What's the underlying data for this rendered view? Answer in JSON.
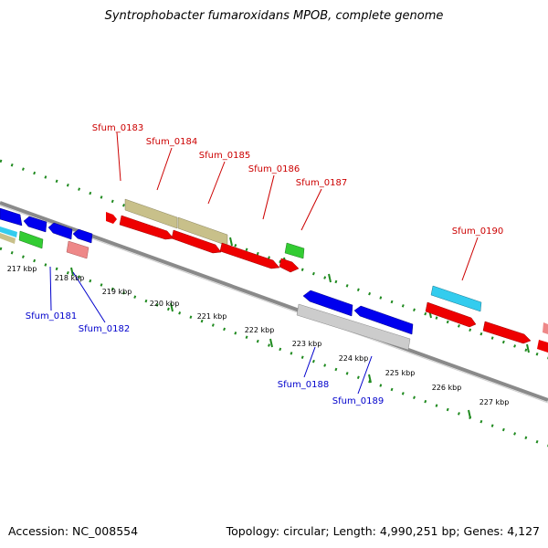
{
  "title": "Syntrophobacter fumaroxidans MPOB, complete genome",
  "footer": {
    "accession": "Accession: NC_008554",
    "summary": "Topology: circular; Length: 4,990,251 bp; Genes: 4,127"
  },
  "colors": {
    "background": "#ffffff",
    "backbone": "#808080",
    "tick": "#1f8a1f",
    "tick_label": "#000000",
    "top_gene_label": "#cc0000",
    "bottom_gene_label": "#0000cc",
    "feature_red": "#ee0000",
    "feature_blue": "#0000ee",
    "feature_green": "#33cc33",
    "feature_olive": "#c8c08a",
    "feature_cyan": "#33ccee",
    "feature_pink": "#ee8888",
    "feature_grey": "#cccccc"
  },
  "scale_ticks": [
    "217 kbp",
    "218 kbp",
    "219 kbp",
    "220 kbp",
    "221 kbp",
    "222 kbp",
    "223 kbp",
    "224 kbp",
    "225 kbp",
    "226 kbp",
    "227 kbp"
  ],
  "top_gene_labels": [
    "Sfum_0183",
    "Sfum_0184",
    "Sfum_0185",
    "Sfum_0186",
    "Sfum_0187",
    "Sfum_0190"
  ],
  "bottom_gene_labels": [
    "Sfum_0181",
    "Sfum_0182",
    "Sfum_0188",
    "Sfum_0189"
  ]
}
